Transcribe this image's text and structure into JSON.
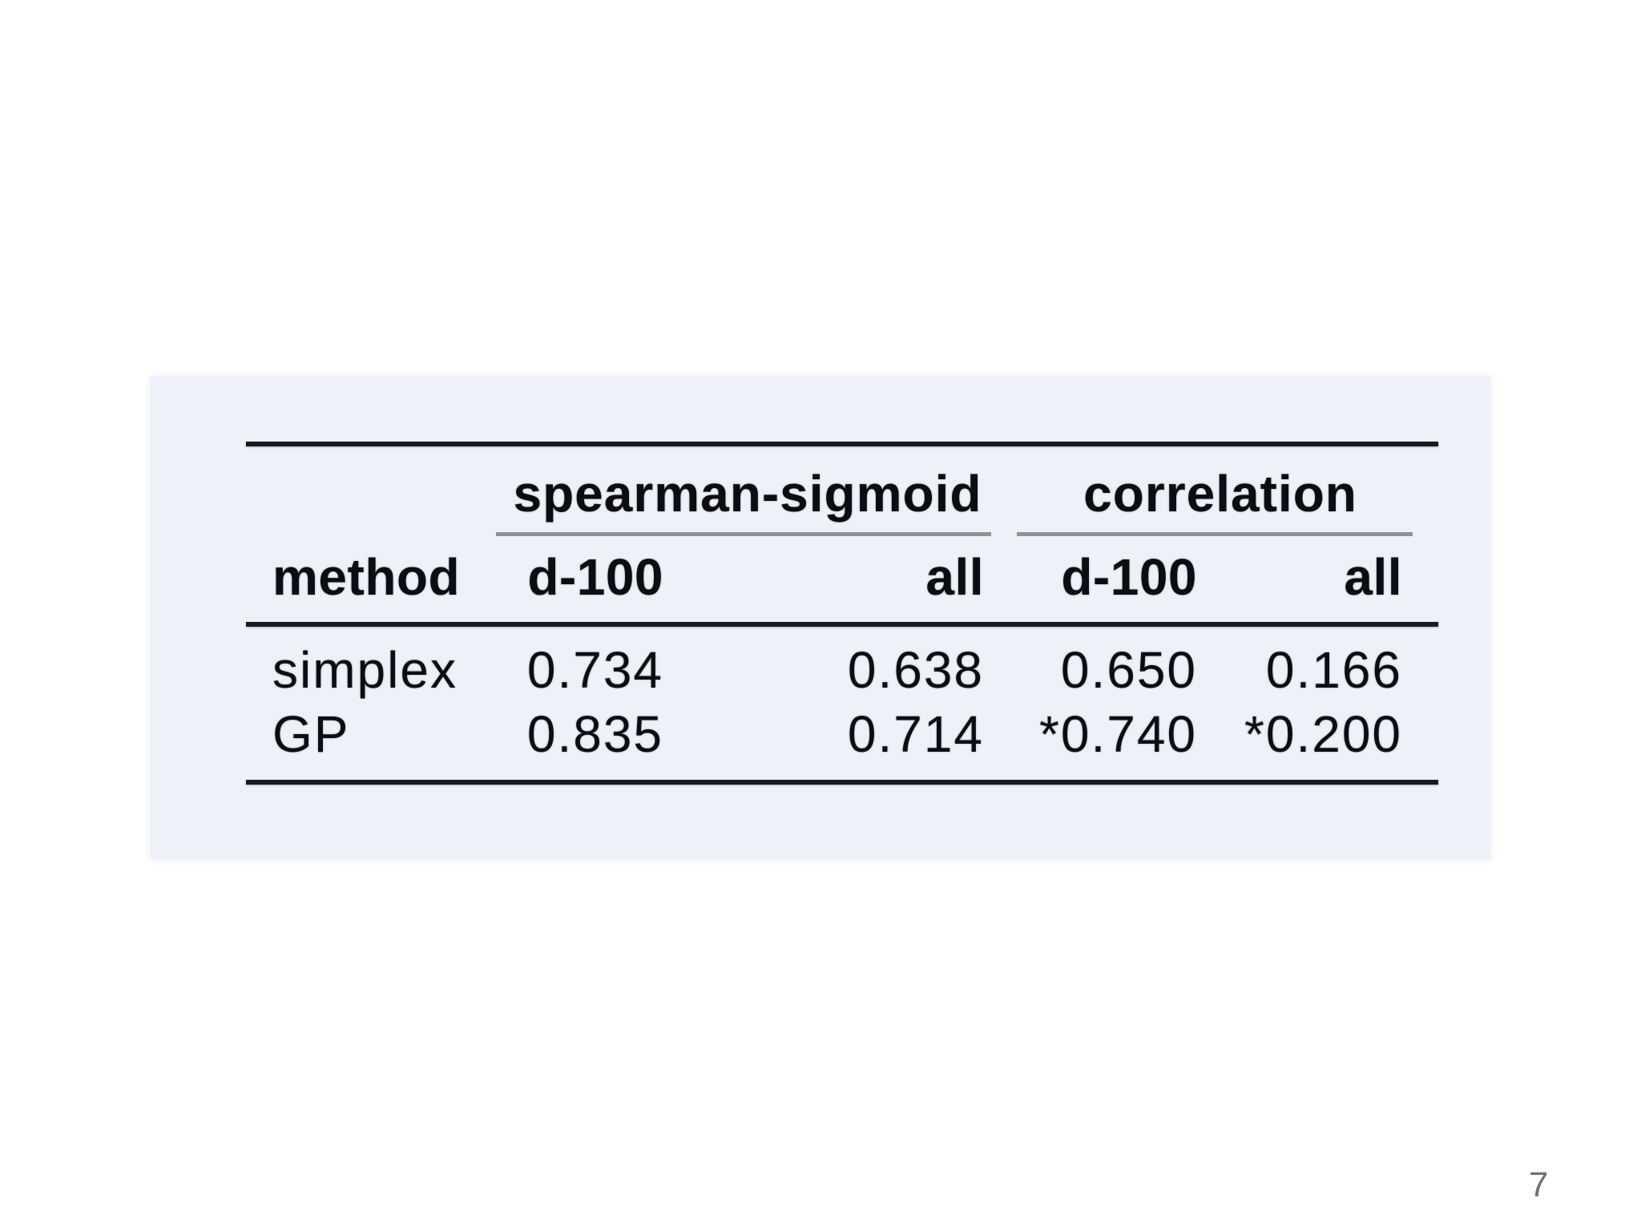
{
  "page": {
    "background_color": "#ffffff",
    "page_number": "7",
    "page_number_color": "#6f7276"
  },
  "table": {
    "panel_background_color": "#eff1f8",
    "rule_color": "#171a20",
    "subrule_color": "#8f9397",
    "text_color": "#0b0d11",
    "group_headers": [
      {
        "label": "spearman-sigmoid"
      },
      {
        "label": "correlation"
      }
    ],
    "columns": [
      "method",
      "d-100",
      "all",
      "d-100",
      "all"
    ],
    "rows": [
      {
        "method": "simplex",
        "values": [
          "0.734",
          "0.638",
          "0.650",
          "0.166"
        ]
      },
      {
        "method": "GP",
        "values": [
          "0.835",
          "0.714",
          "*0.740",
          "*0.200"
        ]
      }
    ]
  }
}
